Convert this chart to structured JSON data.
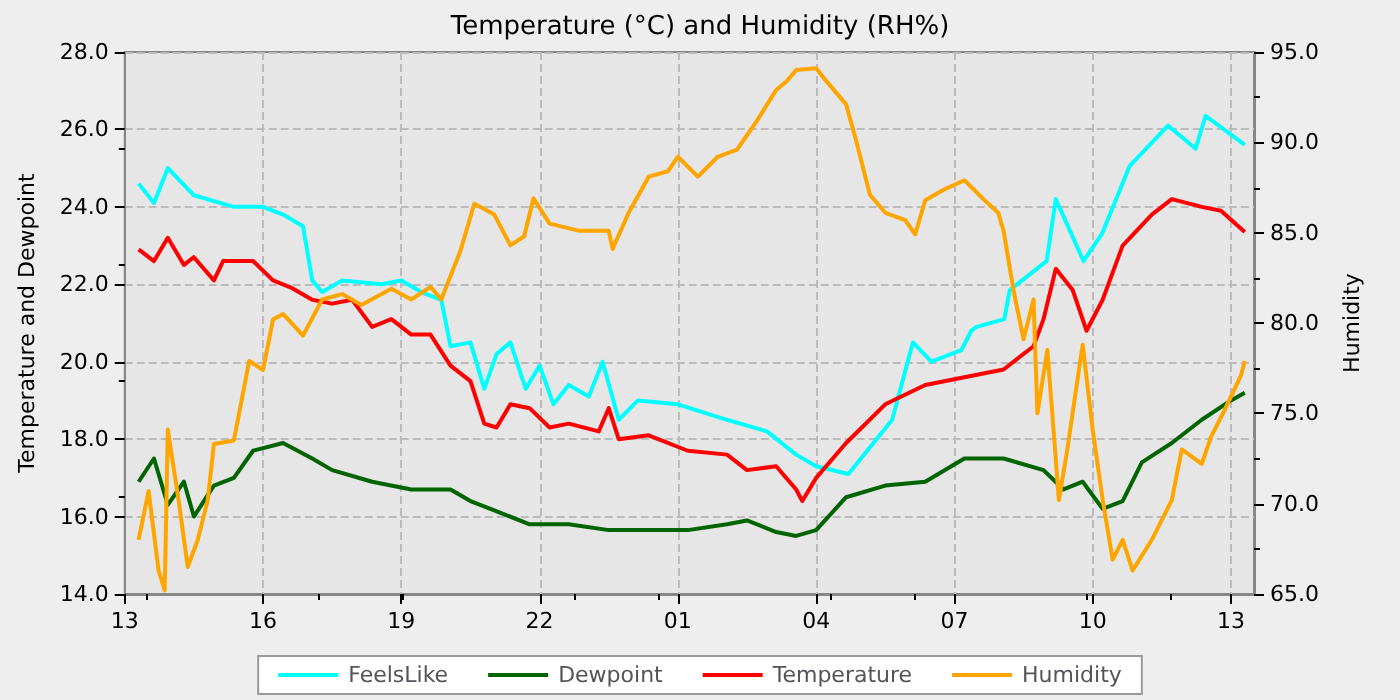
{
  "chart_data": {
    "type": "line",
    "title": "Temperature (°C) and Humidity (RH%)",
    "ylabel": "Temperature and Dewpoint",
    "y2label": "Humidity",
    "xlim": [
      "--01-01T13:00",
      "--01-02T13:30"
    ],
    "xticks": [
      {
        "value": "--01-01T13:00",
        "label": "13"
      },
      {
        "value": "--01-01T16:00",
        "label": "16"
      },
      {
        "value": "--01-01T19:00",
        "label": "19"
      },
      {
        "value": "--01-01T22:00",
        "label": "22"
      },
      {
        "value": "--01-02T01:00",
        "label": "01"
      },
      {
        "value": "--01-02T04:00",
        "label": "04"
      },
      {
        "value": "--01-02T07:00",
        "label": "07"
      },
      {
        "value": "--01-02T10:00",
        "label": "10"
      },
      {
        "value": "--01-02T13:00",
        "label": "13"
      }
    ],
    "ylim": [
      14,
      28
    ],
    "yticks": [
      {
        "value": 14,
        "label": "14.0"
      },
      {
        "value": 16,
        "label": "16.0"
      },
      {
        "value": 18,
        "label": "18.0"
      },
      {
        "value": 20,
        "label": "20.0"
      },
      {
        "value": 22,
        "label": "22.0"
      },
      {
        "value": 24,
        "label": "24.0"
      },
      {
        "value": 26,
        "label": "26.0"
      },
      {
        "value": 28,
        "label": "28.0"
      }
    ],
    "y2lim": [
      65,
      95
    ],
    "y2ticks": [
      {
        "value": 65,
        "label": "65.0"
      },
      {
        "value": 70,
        "label": "70.0"
      },
      {
        "value": 75,
        "label": "75.0"
      },
      {
        "value": 80,
        "label": "80.0"
      },
      {
        "value": 85,
        "label": "85.0"
      },
      {
        "value": 90,
        "label": "90.0"
      },
      {
        "value": 95,
        "label": "95.0"
      }
    ],
    "grid": true,
    "legend": "bottom",
    "marker": "none",
    "line_style": "solid",
    "series": [
      {
        "name": "FeelsLike",
        "color": "#00ffff",
        "x": [
          "--01-01T13:18",
          "--01-01T13:38",
          "--01-01T13:56",
          "--01-01T14:30",
          "--01-01T15:22",
          "--01-01T16:00",
          "--01-01T16:26",
          "--01-01T16:52",
          "--01-01T17:04",
          "--01-01T17:17",
          "--01-01T17:43",
          "--01-01T18:34",
          "--01-01T19:00",
          "--01-01T19:26",
          "--01-01T19:52",
          "--01-01T20:04",
          "--01-01T20:30",
          "--01-01T20:48",
          "--01-01T21:04",
          "--01-01T21:22",
          "--01-01T21:42",
          "--01-01T22:00",
          "--01-01T22:18",
          "--01-01T22:38",
          "--01-01T23:04",
          "--01-01T23:22",
          "--01-01T23:43",
          "--01-02T00:08",
          "--01-02T01:00",
          "--01-02T02:04",
          "--01-02T02:56",
          "--01-02T03:34",
          "--01-02T04:00",
          "--01-02T04:42",
          "--01-02T05:39",
          "--01-02T06:06",
          "--01-02T06:30",
          "--01-02T07:09",
          "--01-02T07:22",
          "--01-02T07:29",
          "--01-02T08:05",
          "--01-02T08:12",
          "--01-02T09:00",
          "--01-02T09:12",
          "--01-02T09:48",
          "--01-02T10:12",
          "--01-02T10:48",
          "--01-02T11:38",
          "--01-02T12:14",
          "--01-02T12:27",
          "--01-02T13:18"
        ],
        "values": [
          24.6,
          24.1,
          25.0,
          24.3,
          24.0,
          24.0,
          23.8,
          23.5,
          22.1,
          21.8,
          22.1,
          22.0,
          22.1,
          21.8,
          21.6,
          20.4,
          20.5,
          19.3,
          20.2,
          20.5,
          19.3,
          19.9,
          18.9,
          19.4,
          19.1,
          20.0,
          18.5,
          19.0,
          18.9,
          18.5,
          18.2,
          17.6,
          17.3,
          17.1,
          18.5,
          20.5,
          20.0,
          20.3,
          20.8,
          20.9,
          21.1,
          21.85,
          22.6,
          24.2,
          22.6,
          23.3,
          25.05,
          26.1,
          25.5,
          26.35,
          25.6
        ]
      },
      {
        "name": "Dewpoint",
        "color": "#006400",
        "x": [
          "--01-01T13:18",
          "--01-01T13:38",
          "--01-01T13:56",
          "--01-01T14:17",
          "--01-01T14:30",
          "--01-01T14:56",
          "--01-01T15:22",
          "--01-01T15:47",
          "--01-01T16:26",
          "--01-01T17:04",
          "--01-01T17:30",
          "--01-01T18:22",
          "--01-01T19:13",
          "--01-01T20:04",
          "--01-01T20:30",
          "--01-01T20:56",
          "--01-01T21:47",
          "--01-01T22:38",
          "--01-01T23:30",
          "--01-02T00:22",
          "--01-02T01:13",
          "--01-02T02:04",
          "--01-02T02:30",
          "--01-02T03:08",
          "--01-02T03:34",
          "--01-02T04:00",
          "--01-02T04:39",
          "--01-02T05:30",
          "--01-02T06:22",
          "--01-02T07:13",
          "--01-02T08:04",
          "--01-02T08:56",
          "--01-02T09:22",
          "--01-02T09:47",
          "--01-02T10:13",
          "--01-02T10:39",
          "--01-02T11:04",
          "--01-02T11:43",
          "--01-02T12:22",
          "--01-02T13:00",
          "--01-02T13:18"
        ],
        "values": [
          16.9,
          17.5,
          16.3,
          16.9,
          16.0,
          16.8,
          17.0,
          17.7,
          17.9,
          17.5,
          17.2,
          16.9,
          16.7,
          16.7,
          16.4,
          16.2,
          15.8,
          15.8,
          15.65,
          15.65,
          15.65,
          15.8,
          15.9,
          15.6,
          15.5,
          15.65,
          16.5,
          16.8,
          16.9,
          17.5,
          17.5,
          17.2,
          16.7,
          16.9,
          16.2,
          16.4,
          17.4,
          17.9,
          18.5,
          19.0,
          19.2
        ]
      },
      {
        "name": "Temperature",
        "color": "#ff0000",
        "x": [
          "--01-01T13:18",
          "--01-01T13:38",
          "--01-01T13:56",
          "--01-01T14:17",
          "--01-01T14:30",
          "--01-01T14:56",
          "--01-01T15:08",
          "--01-01T15:47",
          "--01-01T16:13",
          "--01-01T16:38",
          "--01-01T17:04",
          "--01-01T17:30",
          "--01-01T17:56",
          "--01-01T18:22",
          "--01-01T18:47",
          "--01-01T19:13",
          "--01-01T19:38",
          "--01-01T20:04",
          "--01-01T20:30",
          "--01-01T20:48",
          "--01-01T21:04",
          "--01-01T21:22",
          "--01-01T21:47",
          "--01-01T22:13",
          "--01-01T22:38",
          "--01-01T23:17",
          "--01-01T23:30",
          "--01-01T23:43",
          "--01-02T00:22",
          "--01-02T01:13",
          "--01-02T02:04",
          "--01-02T02:30",
          "--01-02T03:08",
          "--01-02T03:34",
          "--01-02T03:42",
          "--01-02T04:00",
          "--01-02T04:39",
          "--01-02T05:30",
          "--01-02T06:22",
          "--01-02T07:13",
          "--01-02T08:04",
          "--01-02T08:43",
          "--01-02T08:56",
          "--01-02T09:12",
          "--01-02T09:34",
          "--01-02T09:52",
          "--01-02T10:13",
          "--01-02T10:39",
          "--01-02T11:17",
          "--01-02T11:43",
          "--01-02T12:22",
          "--01-02T12:47",
          "--01-02T13:18"
        ],
        "values": [
          22.9,
          22.6,
          23.2,
          22.5,
          22.7,
          22.1,
          22.6,
          22.6,
          22.1,
          21.9,
          21.6,
          21.5,
          21.6,
          20.9,
          21.1,
          20.7,
          20.7,
          19.9,
          19.5,
          18.4,
          18.3,
          18.9,
          18.8,
          18.3,
          18.4,
          18.2,
          18.8,
          18.0,
          18.1,
          17.7,
          17.6,
          17.2,
          17.3,
          16.7,
          16.4,
          17.0,
          17.9,
          18.9,
          19.4,
          19.6,
          19.8,
          20.4,
          21.1,
          22.4,
          21.85,
          20.8,
          21.6,
          23.0,
          23.8,
          24.2,
          24.0,
          23.9,
          23.35
        ]
      },
      {
        "name": "Humidity",
        "color": "#ffa500",
        "axis": "y2",
        "x": [
          "--01-01T13:18",
          "--01-01T13:31",
          "--01-01T13:44",
          "--01-01T13:52",
          "--01-01T13:56",
          "--01-01T14:10",
          "--01-01T14:22",
          "--01-01T14:35",
          "--01-01T14:48",
          "--01-01T14:56",
          "--01-01T15:22",
          "--01-01T15:42",
          "--01-01T16:00",
          "--01-01T16:13",
          "--01-01T16:26",
          "--01-01T16:52",
          "--01-01T17:17",
          "--01-01T17:43",
          "--01-01T18:08",
          "--01-01T18:47",
          "--01-01T19:13",
          "--01-01T19:38",
          "--01-01T19:52",
          "--01-01T20:17",
          "--01-01T20:35",
          "--01-01T21:01",
          "--01-01T21:22",
          "--01-01T21:40",
          "--01-01T21:52",
          "--01-01T22:13",
          "--01-01T22:52",
          "--01-01T23:30",
          "--01-01T23:35",
          "--01-01T23:56",
          "--01-02T00:22",
          "--01-02T00:47",
          "--01-02T01:00",
          "--01-02T01:26",
          "--01-02T01:52",
          "--01-02T02:17",
          "--01-02T02:43",
          "--01-02T03:08",
          "--01-02T03:22",
          "--01-02T03:34",
          "--01-02T04:00",
          "--01-02T04:13",
          "--01-02T04:39",
          "--01-02T04:52",
          "--01-02T05:10",
          "--01-02T05:30",
          "--01-02T05:56",
          "--01-02T06:09",
          "--01-02T06:22",
          "--01-02T06:47",
          "--01-02T07:13",
          "--01-02T07:39",
          "--01-02T07:57",
          "--01-02T08:04",
          "--01-02T08:17",
          "--01-02T08:30",
          "--01-02T08:43",
          "--01-02T08:48",
          "--01-02T09:01",
          "--01-02T09:09",
          "--01-02T09:16",
          "--01-02T09:27",
          "--01-02T09:40",
          "--01-02T09:47",
          "--01-02T10:00",
          "--01-02T10:13",
          "--01-02T10:26",
          "--01-02T10:39",
          "--01-02T10:52",
          "--01-02T11:17",
          "--01-02T11:43",
          "--01-02T11:56",
          "--01-02T12:22",
          "--01-02T12:34",
          "--01-02T12:52",
          "--01-02T13:13",
          "--01-02T13:18"
        ],
        "values": [
          68.0,
          70.7,
          66.3,
          65.2,
          74.1,
          70.2,
          66.5,
          68.0,
          70.2,
          73.3,
          73.5,
          77.9,
          77.4,
          80.2,
          80.5,
          79.3,
          81.3,
          81.6,
          81.0,
          81.9,
          81.3,
          82.0,
          81.3,
          84.0,
          86.6,
          86.0,
          84.3,
          84.8,
          86.9,
          85.5,
          85.1,
          85.1,
          84.1,
          86.1,
          88.1,
          88.4,
          89.2,
          88.1,
          89.2,
          89.6,
          91.2,
          92.9,
          93.4,
          94.0,
          94.1,
          93.4,
          92.1,
          90.1,
          87.1,
          86.1,
          85.7,
          84.9,
          86.8,
          87.4,
          87.9,
          86.8,
          86.1,
          85.1,
          81.8,
          79.1,
          81.3,
          75.0,
          78.5,
          74.1,
          70.2,
          73.0,
          76.8,
          78.8,
          74.1,
          70.2,
          66.9,
          68.0,
          66.3,
          68.0,
          70.2,
          73.0,
          72.2,
          73.7,
          75.2,
          77.1,
          77.9
        ]
      }
    ]
  }
}
